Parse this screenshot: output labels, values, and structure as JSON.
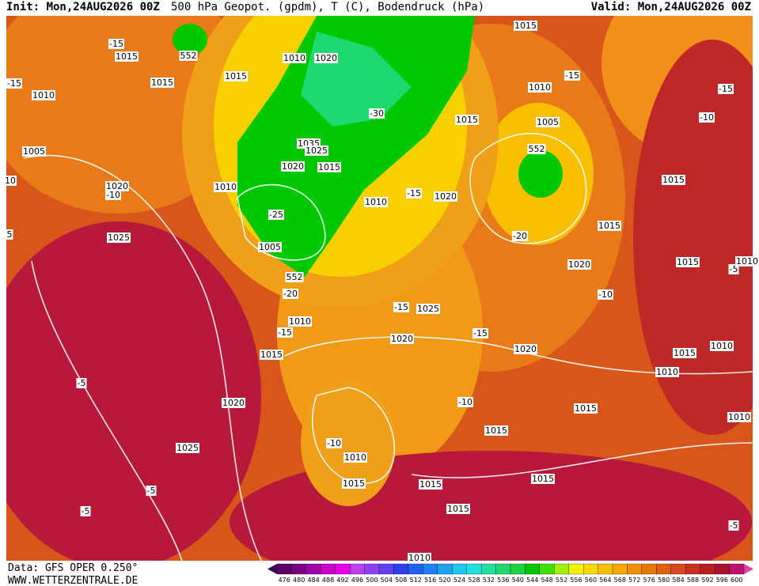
{
  "header": {
    "init": "Init: Mon,24AUG2026 00Z",
    "title": "500 hPa Geopot. (gpdm), T (C), Bodendruck (hPa)",
    "valid": "Valid: Mon,24AUG2026 00Z"
  },
  "footer": {
    "source": "Data: GFS OPER 0.250°",
    "site": "WWW.WETTERZENTRALE.DE"
  },
  "map_labels": [
    "1015",
    "-15",
    "1015",
    "1010",
    "-15",
    "1005",
    "1020",
    "-10",
    "1025",
    "552",
    "1015",
    "1010",
    "1020",
    "-30",
    "1035",
    "1025",
    "1020",
    "1015",
    "1010",
    "-25",
    "1005",
    "552",
    "-20",
    "1010",
    "-15",
    "1015",
    "1010",
    "-15",
    "1020",
    "1015",
    "1010",
    "1005",
    "552",
    "-15",
    "1015",
    "-15",
    "-10",
    "1015",
    "1015",
    "-20",
    "1020",
    "-10",
    "1015",
    "-5",
    "1010",
    "-15",
    "1025",
    "1020",
    "-15",
    "1020",
    "1015",
    "1010",
    "1010",
    "-5",
    "1020",
    "-10",
    "1015",
    "1010",
    "1015",
    "-10",
    "1010",
    "1025",
    "1015",
    "1015",
    "1015",
    "-5",
    "-5",
    "1015",
    "-5",
    "1010",
    "10",
    "5"
  ],
  "colorbar": {
    "values": [
      476,
      480,
      484,
      488,
      492,
      496,
      500,
      504,
      508,
      512,
      516,
      520,
      524,
      528,
      532,
      536,
      540,
      544,
      548,
      552,
      556,
      560,
      564,
      568,
      572,
      576,
      580,
      584,
      588,
      592,
      596,
      600
    ],
    "colors": [
      "#5a0066",
      "#7a0088",
      "#a000a8",
      "#c800c8",
      "#e600e6",
      "#c040f0",
      "#9040f0",
      "#6040f0",
      "#3040f0",
      "#2060f0",
      "#2080f0",
      "#20a0f0",
      "#20c8f0",
      "#20e0e0",
      "#20e0a0",
      "#20d870",
      "#20d040",
      "#00c800",
      "#40e000",
      "#a0f000",
      "#f0f000",
      "#f8d800",
      "#f8c000",
      "#f8a800",
      "#f09000",
      "#e87800",
      "#e06010",
      "#d84820",
      "#c83020",
      "#b82020",
      "#a81030",
      "#c01070"
    ]
  }
}
